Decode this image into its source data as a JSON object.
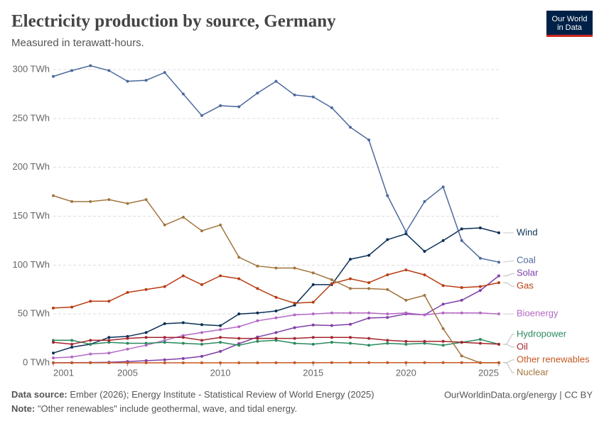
{
  "chart_data": {
    "type": "line",
    "title": "Electricity production by source, Germany",
    "subtitle": "Measured in terawatt-hours.",
    "logo": [
      "Our World",
      "in Data"
    ],
    "source": {
      "label": "Data source:",
      "text": "Ember (2026); Energy Institute - Statistical Review of World Energy (2025)"
    },
    "note": {
      "label": "Note:",
      "text": "\"Other renewables\" include geothermal, wave, and tidal energy."
    },
    "credit": "OurWorldinData.org/energy | CC BY",
    "x": [
      2001,
      2002,
      2003,
      2004,
      2005,
      2006,
      2007,
      2008,
      2009,
      2010,
      2011,
      2012,
      2013,
      2014,
      2015,
      2016,
      2017,
      2018,
      2019,
      2020,
      2021,
      2022,
      2023,
      2024,
      2025
    ],
    "xlim": [
      2001,
      2025
    ],
    "xticks": [
      2001,
      2005,
      2010,
      2015,
      2020,
      2025
    ],
    "ylim": [
      0,
      300
    ],
    "yticks": [
      {
        "value": 0,
        "label": "0 TWh"
      },
      {
        "value": 50,
        "label": "50 TWh"
      },
      {
        "value": 100,
        "label": "100 TWh"
      },
      {
        "value": 150,
        "label": "150 TWh"
      },
      {
        "value": 200,
        "label": "200 TWh"
      },
      {
        "value": 250,
        "label": "250 TWh"
      },
      {
        "value": 300,
        "label": "300 TWh"
      }
    ],
    "grid": true,
    "series": [
      {
        "name": "Wind",
        "color": "#0b2f57",
        "values": [
          10,
          16,
          19,
          26,
          27,
          31,
          40,
          41,
          39,
          38,
          50,
          51,
          53,
          59,
          80,
          80,
          106,
          110,
          126,
          132,
          114,
          125,
          137,
          138,
          133
        ]
      },
      {
        "name": "Coal",
        "color": "#4c6a9c",
        "values": [
          293,
          299,
          304,
          299,
          288,
          289,
          297,
          275,
          253,
          263,
          262,
          276,
          288,
          274,
          272,
          261,
          241,
          228,
          171,
          134,
          165,
          180,
          125,
          107,
          103
        ]
      },
      {
        "name": "Solar",
        "color": "#7f3ea8",
        "values": [
          0.1,
          0.2,
          0.3,
          0.6,
          1.3,
          2.2,
          3.1,
          4.4,
          6.6,
          11.7,
          19.6,
          26.4,
          31,
          36,
          38.7,
          38.1,
          39.4,
          45.8,
          46.4,
          50,
          49,
          60,
          64,
          74,
          89
        ]
      },
      {
        "name": "Gas",
        "color": "#b83d13",
        "values": [
          56,
          57,
          63,
          63,
          72,
          75,
          78,
          89,
          80,
          89,
          86,
          76,
          67,
          61,
          62,
          81,
          86,
          82,
          90,
          95,
          90,
          79,
          77,
          78,
          82
        ]
      },
      {
        "name": "Bioenergy",
        "color": "#b468c4",
        "values": [
          5,
          6,
          9,
          10,
          14,
          18,
          23,
          28,
          31,
          34,
          37,
          43,
          46,
          49,
          50,
          51,
          51,
          51,
          50,
          51,
          49,
          51,
          51,
          51,
          50
        ]
      },
      {
        "name": "Hydropower",
        "color": "#2a8a5e",
        "values": [
          23,
          23,
          19,
          21,
          20,
          20,
          21,
          20,
          19,
          21,
          18,
          22,
          23,
          20,
          19,
          21,
          20,
          18,
          20,
          19,
          20,
          18,
          21,
          24,
          19
        ]
      },
      {
        "name": "Oil",
        "color": "#a3262f",
        "values": [
          21,
          19,
          23,
          23,
          25,
          26,
          26,
          26,
          23,
          26,
          25,
          25,
          25,
          25,
          26,
          26,
          26,
          25,
          23,
          22,
          22,
          22,
          21,
          20,
          19
        ]
      },
      {
        "name": "Nuclear",
        "color": "#a2763f",
        "values": [
          171,
          165,
          165,
          167,
          163,
          167,
          141,
          149,
          135,
          141,
          108,
          99,
          97,
          97,
          92,
          85,
          76,
          76,
          75,
          64,
          69,
          35,
          7,
          0,
          0
        ]
      },
      {
        "name": "Other renewables",
        "color": "#c35a24",
        "values": [
          0,
          0,
          0,
          0,
          0,
          0,
          0,
          0,
          0,
          0,
          0,
          0,
          0.1,
          0.1,
          0.1,
          0.2,
          0.2,
          0.2,
          0.2,
          0.2,
          0.2,
          0.2,
          0.2,
          0.2,
          0.2
        ]
      }
    ]
  }
}
